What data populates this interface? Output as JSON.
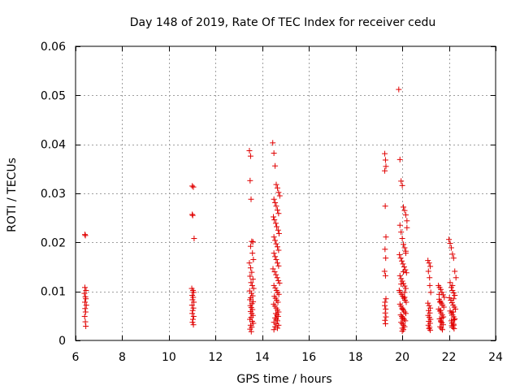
{
  "chart_data": {
    "type": "scatter",
    "title": "Day 148 of 2019, Rate Of TEC Index for receiver cedu",
    "xlabel": "GPS time / hours",
    "ylabel": "ROTI / TECUs",
    "xlim": [
      6,
      24
    ],
    "ylim": [
      0,
      0.06
    ],
    "grid": true,
    "marker": "+",
    "xticks": [
      6,
      8,
      10,
      12,
      14,
      16,
      18,
      20,
      22,
      24
    ],
    "xtick_labels": [
      "6",
      "8",
      "10",
      "12",
      "14",
      "16",
      "18",
      "20",
      "22",
      "24"
    ],
    "yticks": [
      0,
      0.01,
      0.02,
      0.03,
      0.04,
      0.05,
      0.06
    ],
    "ytick_labels": [
      "0",
      "0.01",
      "0.02",
      "0.03",
      "0.04",
      "0.05",
      "0.06"
    ],
    "series": [
      {
        "name": "ROTI",
        "color": "#e00000",
        "x": [
          6.4,
          6.42,
          6.4,
          6.45,
          6.38,
          6.42,
          6.44,
          6.4,
          6.46,
          6.41,
          6.43,
          6.39,
          6.42,
          6.44,
          11.0,
          11.05,
          11.0,
          11.02,
          11.08,
          10.98,
          11.03,
          11.06,
          11.0,
          11.04,
          11.01,
          11.07,
          10.99,
          11.05,
          11.02,
          11.0,
          11.06,
          11.03,
          11.01,
          11.05,
          13.45,
          13.5,
          13.48,
          13.52,
          13.55,
          13.6,
          13.5,
          13.58,
          13.62,
          13.45,
          13.5,
          13.55,
          13.48,
          13.6,
          13.52,
          13.57,
          13.63,
          13.46,
          13.54,
          13.59,
          13.51,
          13.47,
          13.61,
          13.56,
          13.49,
          13.53,
          13.58,
          13.5,
          13.55,
          13.6,
          13.52,
          13.47,
          13.57,
          13.62,
          13.5,
          13.55,
          13.48,
          13.53,
          14.45,
          14.5,
          14.55,
          14.6,
          14.65,
          14.7,
          14.75,
          14.5,
          14.55,
          14.6,
          14.65,
          14.7,
          14.48,
          14.52,
          14.58,
          14.62,
          14.68,
          14.72,
          14.5,
          14.55,
          14.6,
          14.65,
          14.7,
          14.5,
          14.55,
          14.6,
          14.65,
          14.7,
          14.46,
          14.53,
          14.59,
          14.64,
          14.69,
          14.74,
          14.5,
          14.56,
          14.61,
          14.66,
          14.71,
          14.52,
          14.57,
          14.62,
          14.67,
          14.49,
          14.54,
          14.6,
          14.65,
          14.7,
          14.58,
          14.63,
          14.68,
          14.55,
          14.6,
          14.65,
          14.5,
          14.6,
          14.7,
          14.55,
          14.65,
          14.5,
          19.25,
          19.28,
          19.3,
          19.25,
          19.27,
          19.3,
          19.26,
          19.29,
          19.24,
          19.28,
          19.3,
          19.26,
          19.25,
          19.29,
          19.27,
          19.3,
          19.26,
          19.28,
          19.85,
          19.9,
          19.95,
          20.0,
          20.05,
          20.1,
          20.15,
          20.2,
          19.9,
          19.95,
          20.0,
          20.05,
          20.1,
          20.15,
          19.88,
          19.93,
          19.98,
          20.03,
          20.08,
          20.13,
          20.18,
          19.9,
          19.95,
          20.0,
          20.05,
          20.1,
          20.15,
          19.87,
          19.92,
          19.97,
          20.02,
          20.07,
          20.12,
          20.17,
          19.9,
          19.95,
          20.0,
          20.05,
          20.1,
          20.15,
          19.93,
          19.98,
          20.03,
          20.08,
          20.13,
          19.95,
          20.0,
          20.05,
          20.1,
          20.0,
          20.05,
          20.0,
          20.05,
          20.1,
          20.0,
          20.2,
          20.15,
          19.95,
          20.1,
          20.0,
          21.1,
          21.15,
          21.2,
          21.12,
          21.17,
          21.22,
          21.1,
          21.15,
          21.2,
          21.13,
          21.18,
          21.11,
          21.16,
          21.21,
          21.14,
          21.19,
          21.12,
          21.17,
          21.15,
          21.2,
          21.18,
          21.55,
          21.6,
          21.65,
          21.7,
          21.75,
          21.8,
          21.58,
          21.63,
          21.68,
          21.73,
          21.78,
          21.56,
          21.61,
          21.66,
          21.71,
          21.76,
          21.6,
          21.65,
          21.7,
          21.75,
          21.62,
          21.67,
          21.72,
          21.58,
          21.64,
          21.7,
          21.66,
          21.62,
          22.0,
          22.05,
          22.1,
          22.15,
          22.2,
          22.25,
          22.3,
          22.05,
          22.1,
          22.15,
          22.2,
          22.25,
          22.02,
          22.08,
          22.13,
          22.18,
          22.23,
          22.28,
          22.05,
          22.1,
          22.15,
          22.2,
          22.25,
          22.1,
          22.15,
          22.2,
          22.12,
          22.17,
          22.22,
          22.15,
          22.2,
          22.18,
          22.22,
          22.2
        ],
        "y": [
          0.0216,
          0.0214,
          0.0108,
          0.0102,
          0.0096,
          0.0089,
          0.0085,
          0.0078,
          0.0072,
          0.0065,
          0.0058,
          0.0049,
          0.0038,
          0.0029,
          0.0315,
          0.0313,
          0.0257,
          0.0255,
          0.0208,
          0.0106,
          0.0102,
          0.0098,
          0.0092,
          0.0088,
          0.0083,
          0.0078,
          0.0072,
          0.0066,
          0.0061,
          0.0055,
          0.0049,
          0.0043,
          0.0037,
          0.0032,
          0.0387,
          0.0376,
          0.0326,
          0.0288,
          0.0202,
          0.0201,
          0.0192,
          0.0178,
          0.0165,
          0.0158,
          0.0148,
          0.0139,
          0.0131,
          0.0125,
          0.0118,
          0.0112,
          0.0106,
          0.0101,
          0.0096,
          0.0091,
          0.0087,
          0.0083,
          0.0079,
          0.0075,
          0.0071,
          0.0067,
          0.0063,
          0.0059,
          0.0055,
          0.0051,
          0.0047,
          0.0043,
          0.0039,
          0.0035,
          0.0031,
          0.0027,
          0.0023,
          0.0018,
          0.0403,
          0.0382,
          0.0356,
          0.0318,
          0.0311,
          0.0302,
          0.0295,
          0.0288,
          0.0281,
          0.0274,
          0.0266,
          0.0259,
          0.0252,
          0.0246,
          0.0239,
          0.0232,
          0.0225,
          0.0218,
          0.0211,
          0.0204,
          0.0197,
          0.0191,
          0.0184,
          0.0178,
          0.0171,
          0.0165,
          0.0158,
          0.0152,
          0.0146,
          0.014,
          0.0134,
          0.0128,
          0.0122,
          0.0117,
          0.0112,
          0.0107,
          0.0102,
          0.0098,
          0.0094,
          0.009,
          0.0086,
          0.0082,
          0.0078,
          0.0074,
          0.007,
          0.0066,
          0.0062,
          0.0058,
          0.0055,
          0.0052,
          0.0049,
          0.0046,
          0.0043,
          0.004,
          0.0037,
          0.0034,
          0.0031,
          0.0028,
          0.0025,
          0.0022,
          0.0381,
          0.0368,
          0.0355,
          0.0346,
          0.0274,
          0.0211,
          0.0186,
          0.0168,
          0.0141,
          0.0132,
          0.0085,
          0.0078,
          0.0071,
          0.0064,
          0.0056,
          0.0048,
          0.0041,
          0.0034,
          0.0512,
          0.0369,
          0.0325,
          0.0316,
          0.0272,
          0.0265,
          0.0256,
          0.0244,
          0.0235,
          0.0221,
          0.0208,
          0.0196,
          0.0189,
          0.0182,
          0.0175,
          0.0168,
          0.0162,
          0.0156,
          0.015,
          0.0144,
          0.0138,
          0.0132,
          0.0126,
          0.0121,
          0.0116,
          0.0111,
          0.0106,
          0.0102,
          0.0098,
          0.0094,
          0.009,
          0.0086,
          0.0082,
          0.0078,
          0.0074,
          0.007,
          0.0066,
          0.0062,
          0.0058,
          0.0055,
          0.0052,
          0.0049,
          0.0046,
          0.0043,
          0.004,
          0.0037,
          0.0034,
          0.0031,
          0.0028,
          0.0025,
          0.0022,
          0.0019,
          0.014,
          0.0098,
          0.0064,
          0.023,
          0.0178,
          0.0115,
          0.0088,
          0.0045,
          0.0163,
          0.0158,
          0.0151,
          0.0141,
          0.0128,
          0.0098,
          0.0076,
          0.0071,
          0.0066,
          0.0061,
          0.0056,
          0.0051,
          0.0047,
          0.0043,
          0.0039,
          0.0035,
          0.0031,
          0.0027,
          0.0024,
          0.0021,
          0.0112,
          0.0112,
          0.0108,
          0.0104,
          0.0098,
          0.0093,
          0.0088,
          0.0084,
          0.008,
          0.0076,
          0.0072,
          0.0068,
          0.0064,
          0.006,
          0.0056,
          0.0052,
          0.0048,
          0.0044,
          0.004,
          0.0036,
          0.0032,
          0.0028,
          0.0025,
          0.0022,
          0.0094,
          0.0061,
          0.0046,
          0.0038,
          0.0078,
          0.0206,
          0.0198,
          0.0189,
          0.0176,
          0.0168,
          0.0141,
          0.0128,
          0.0118,
          0.0108,
          0.0102,
          0.0097,
          0.0092,
          0.0087,
          0.0082,
          0.0077,
          0.0072,
          0.0068,
          0.0064,
          0.006,
          0.0056,
          0.0052,
          0.0048,
          0.0044,
          0.004,
          0.0036,
          0.0033,
          0.003,
          0.0027,
          0.0024,
          0.0112,
          0.0085,
          0.0058,
          0.0042,
          0.0031
        ]
      }
    ]
  }
}
